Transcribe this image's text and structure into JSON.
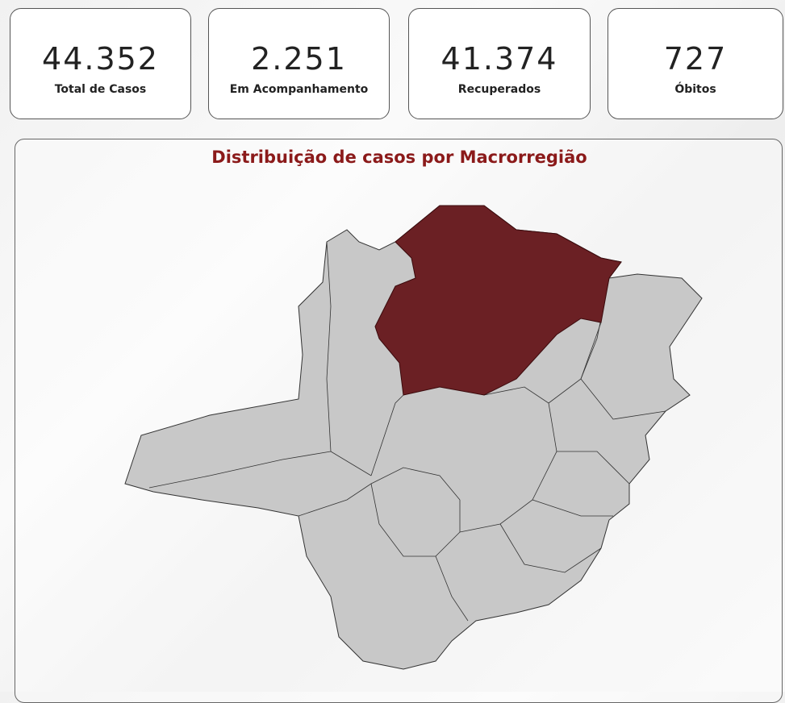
{
  "cards": [
    {
      "value": "44.352",
      "label": "Total de Casos"
    },
    {
      "value": "2.251",
      "label": "Em Acompanhamento"
    },
    {
      "value": "41.374",
      "label": "Recuperados"
    },
    {
      "value": "727",
      "label": "Óbitos"
    }
  ],
  "map": {
    "title": "Distribuição de casos por Macrorregião"
  }
}
